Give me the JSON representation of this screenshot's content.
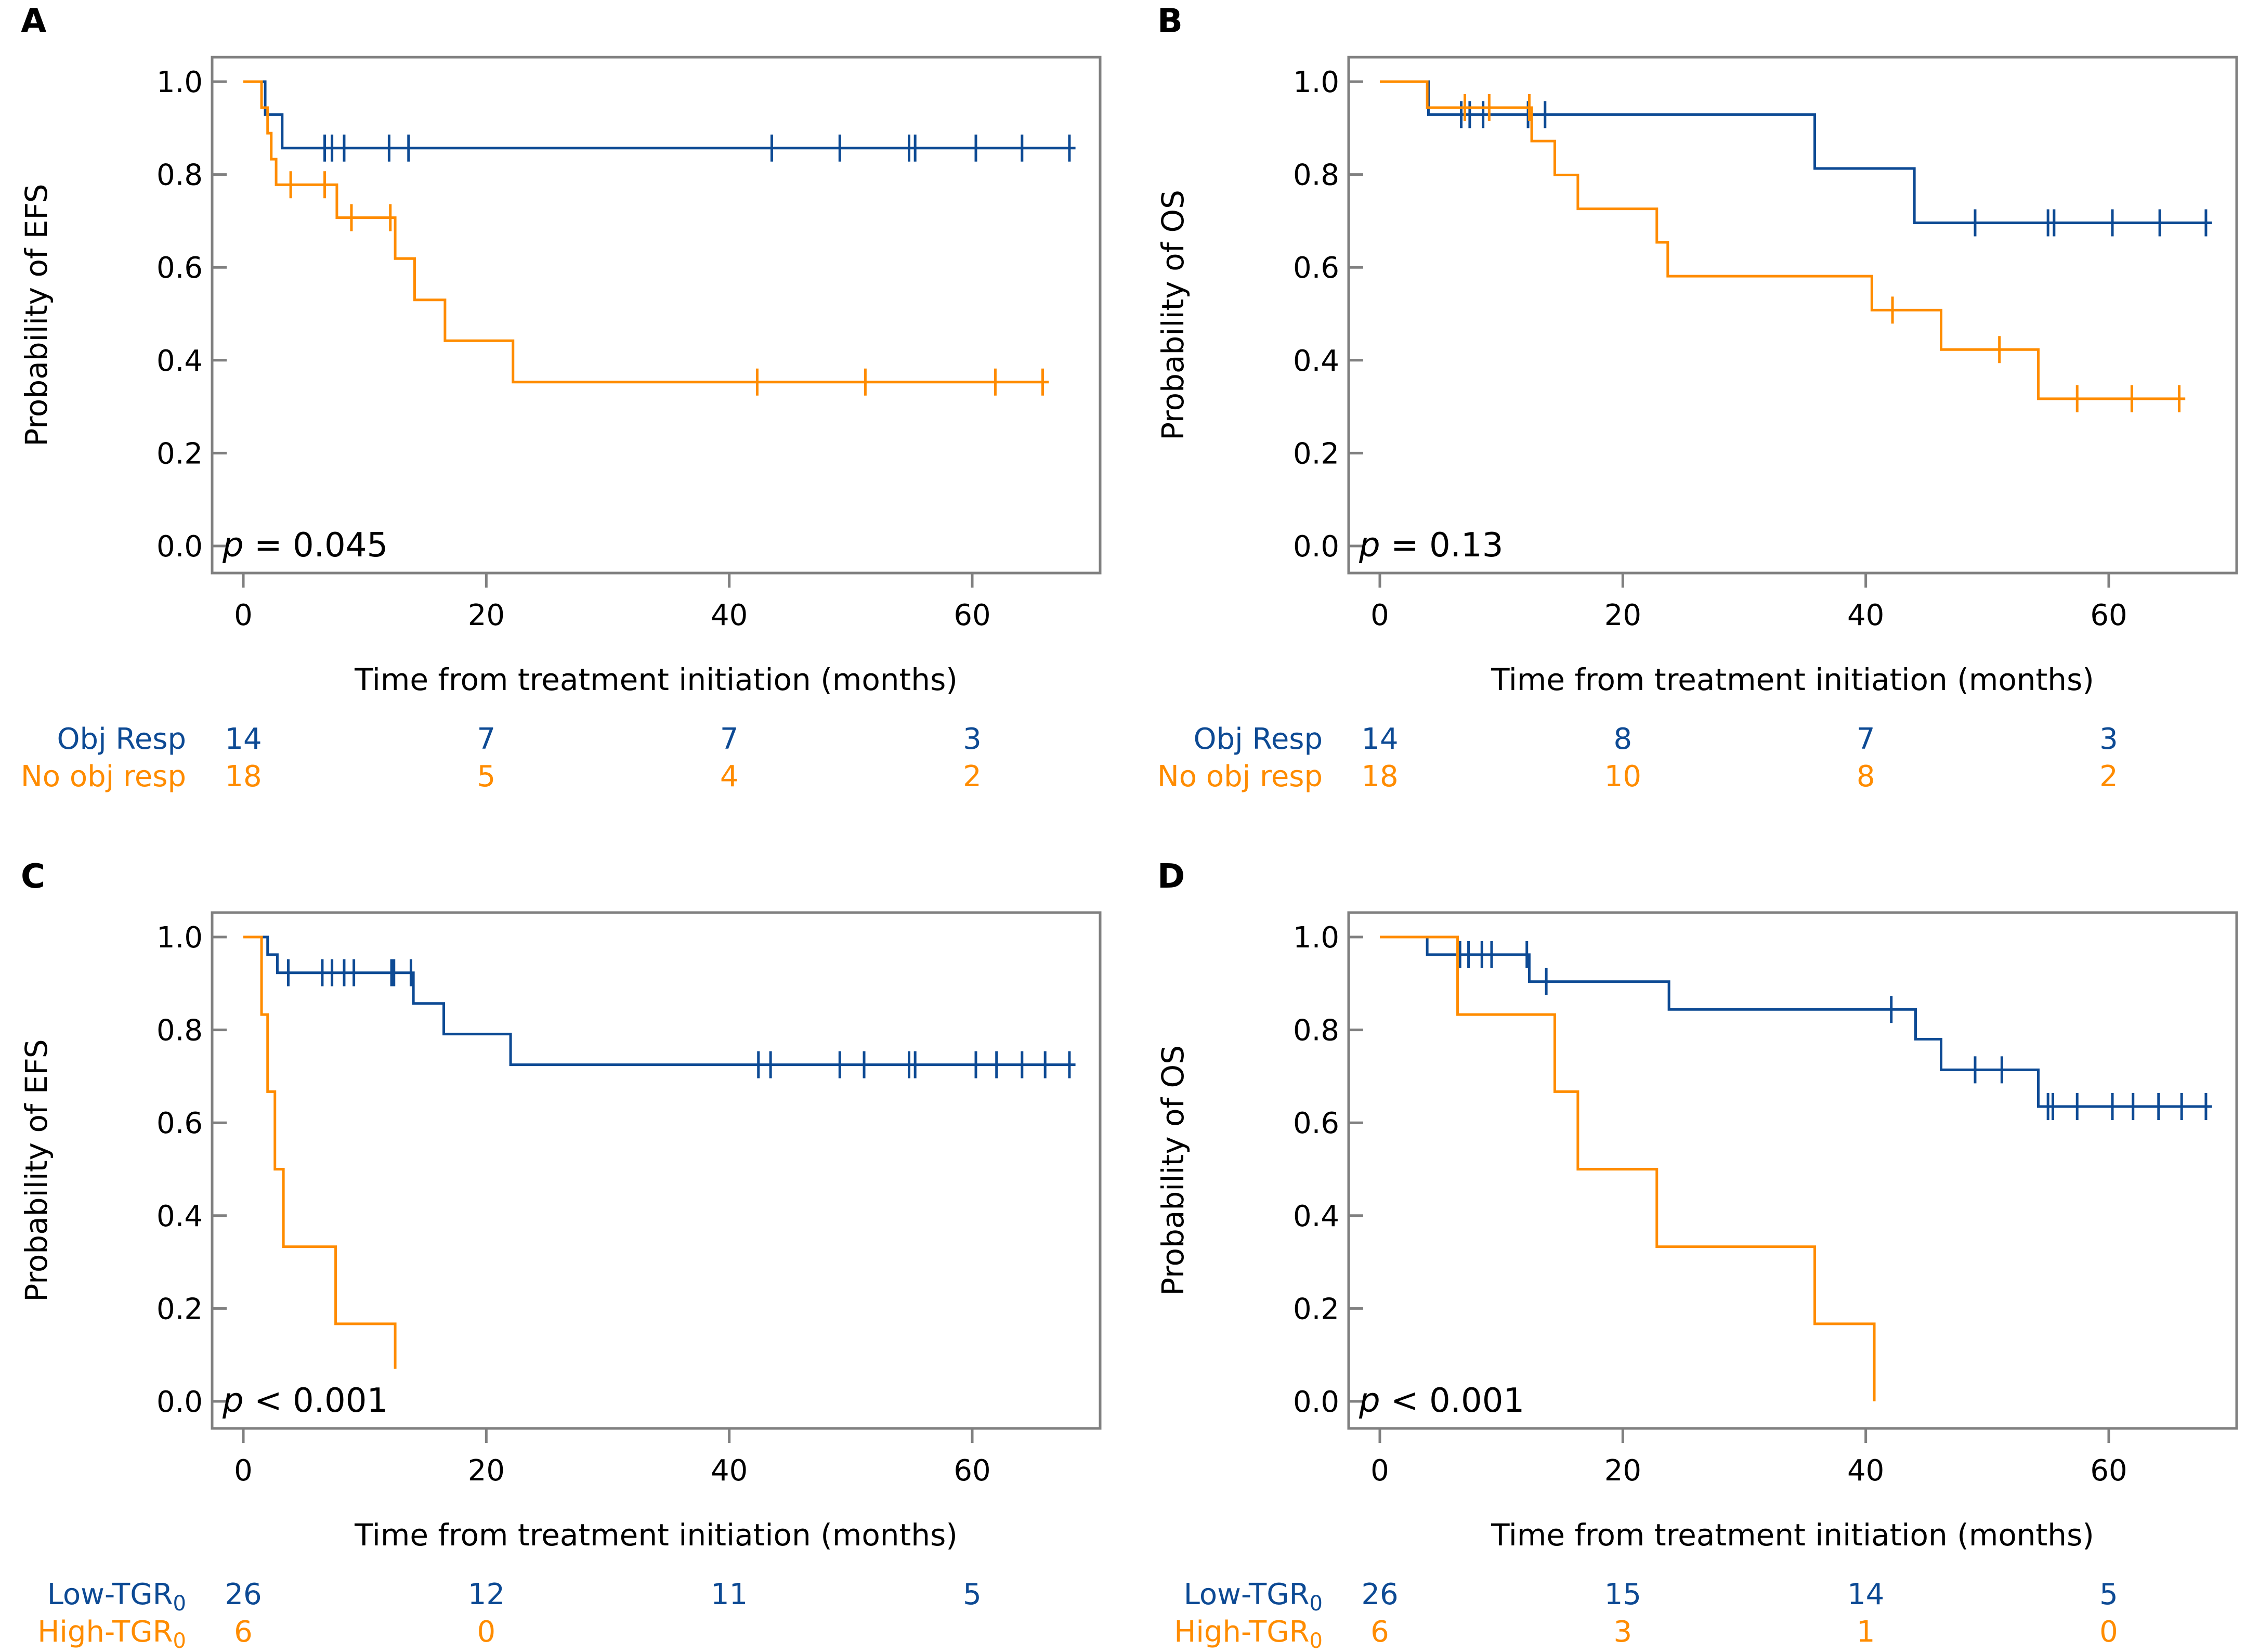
{
  "colors": {
    "blue": "#0d4a94",
    "orange": "#ff8c00",
    "axis": "#808080",
    "text": "#000000"
  },
  "chart_data": [
    {
      "type": "line",
      "panel_label": "A",
      "ylabel": "Probability of EFS",
      "xlabel": "Time from treatment initiation (months)",
      "xlim": [
        -1.5,
        70
      ],
      "ylim": [
        -0.05,
        1.05
      ],
      "xticks": [
        0,
        20,
        40,
        60
      ],
      "yticks": [
        "0.0",
        "0.2",
        "0.4",
        "0.6",
        "0.8",
        "1.0"
      ],
      "pvalue": {
        "p": "p",
        "rest": " = 0.045"
      },
      "series": [
        {
          "name": "Obj Resp",
          "color": "blue",
          "steps": [
            [
              0,
              1.0
            ],
            [
              1.8,
              0.929
            ],
            [
              3.2,
              0.857
            ]
          ],
          "end": 68.5,
          "censors": [
            6.7,
            7.3,
            8.3,
            12.0,
            13.6,
            43.5,
            49.1,
            54.8,
            55.3,
            60.3,
            64.1,
            68.0
          ]
        },
        {
          "name": "No obj resp",
          "color": "orange",
          "steps": [
            [
              0,
              1.0
            ],
            [
              1.5,
              0.944
            ],
            [
              2.0,
              0.889
            ],
            [
              2.3,
              0.833
            ],
            [
              2.7,
              0.778
            ],
            [
              7.7,
              0.707
            ],
            [
              12.5,
              0.619
            ],
            [
              14.1,
              0.53
            ],
            [
              16.6,
              0.442
            ],
            [
              22.2,
              0.353
            ]
          ],
          "end": 66.3,
          "censors": [
            3.9,
            6.7,
            8.9,
            12.1,
            42.3,
            51.2,
            61.9,
            65.8
          ]
        }
      ],
      "risk_table": {
        "times": [
          0,
          20,
          40,
          60
        ],
        "rows": [
          {
            "label": "Obj Resp",
            "sub": "",
            "color": "blue",
            "values": [
              "14",
              "7",
              "7",
              "3"
            ]
          },
          {
            "label": "No obj resp",
            "sub": "",
            "color": "orange",
            "values": [
              "18",
              "5",
              "4",
              "2"
            ]
          }
        ]
      }
    },
    {
      "type": "line",
      "panel_label": "B",
      "ylabel": "Probability of OS",
      "xlabel": "Time from treatment initiation (months)",
      "xlim": [
        -1.5,
        70
      ],
      "ylim": [
        -0.05,
        1.05
      ],
      "xticks": [
        0,
        20,
        40,
        60
      ],
      "yticks": [
        "0.0",
        "0.2",
        "0.4",
        "0.6",
        "0.8",
        "1.0"
      ],
      "pvalue": {
        "p": "p",
        "rest": " = 0.13"
      },
      "series": [
        {
          "name": "Obj Resp",
          "color": "blue",
          "steps": [
            [
              0,
              1.0
            ],
            [
              4.0,
              0.929
            ],
            [
              35.8,
              0.813
            ],
            [
              44.0,
              0.696
            ]
          ],
          "end": 68.5,
          "censors": [
            6.7,
            7.4,
            8.5,
            12.2,
            13.6,
            49.0,
            55.0,
            55.5,
            60.3,
            64.2,
            68.0
          ]
        },
        {
          "name": "No obj resp",
          "color": "orange",
          "steps": [
            [
              0,
              1.0
            ],
            [
              3.9,
              0.944
            ],
            [
              12.5,
              0.872
            ],
            [
              14.4,
              0.799
            ],
            [
              16.3,
              0.726
            ],
            [
              22.8,
              0.654
            ],
            [
              23.7,
              0.581
            ],
            [
              40.5,
              0.508
            ],
            [
              46.2,
              0.423
            ],
            [
              54.2,
              0.317
            ]
          ],
          "end": 66.3,
          "censors": [
            7.0,
            9.0,
            12.3,
            42.2,
            51.0,
            57.4,
            61.9,
            65.8
          ]
        }
      ],
      "risk_table": {
        "times": [
          0,
          20,
          40,
          60
        ],
        "rows": [
          {
            "label": "Obj Resp",
            "sub": "",
            "color": "blue",
            "values": [
              "14",
              "8",
              "7",
              "3"
            ]
          },
          {
            "label": "No obj resp",
            "sub": "",
            "color": "orange",
            "values": [
              "18",
              "10",
              "8",
              "2"
            ]
          }
        ]
      }
    },
    {
      "type": "line",
      "panel_label": "C",
      "ylabel": "Probability of EFS",
      "xlabel": "Time from treatment initiation (months)",
      "xlim": [
        -1.5,
        70
      ],
      "ylim": [
        -0.05,
        1.05
      ],
      "xticks": [
        0,
        20,
        40,
        60
      ],
      "yticks": [
        "0.0",
        "0.2",
        "0.4",
        "0.6",
        "0.8",
        "1.0"
      ],
      "pvalue": {
        "p": "p",
        "rest": " < 0.001"
      },
      "series": [
        {
          "name": "Low-TGR0",
          "color": "blue",
          "steps": [
            [
              0,
              1.0
            ],
            [
              2.0,
              0.962
            ],
            [
              2.8,
              0.923
            ],
            [
              14.0,
              0.857
            ],
            [
              16.5,
              0.791
            ],
            [
              22.0,
              0.725
            ]
          ],
          "end": 68.5,
          "censors": [
            3.7,
            6.5,
            7.3,
            8.3,
            9.1,
            12.2,
            12.4,
            13.8,
            42.4,
            43.4,
            49.1,
            51.1,
            54.8,
            55.3,
            60.3,
            62.0,
            64.1,
            66.0,
            68.0
          ]
        },
        {
          "name": "High-TGR0",
          "color": "orange",
          "steps": [
            [
              0,
              1.0
            ],
            [
              1.5,
              0.833
            ],
            [
              2.0,
              0.667
            ],
            [
              2.6,
              0.5
            ],
            [
              3.3,
              0.333
            ],
            [
              7.6,
              0.167
            ],
            [
              12.5,
              0.07
            ]
          ],
          "end": 12.5,
          "censors": []
        }
      ],
      "risk_table": {
        "times": [
          0,
          20,
          40,
          60
        ],
        "rows": [
          {
            "label": "Low-TGR",
            "sub": "0",
            "color": "blue",
            "values": [
              "26",
              "12",
              "11",
              "5"
            ]
          },
          {
            "label": "High-TGR",
            "sub": "0",
            "color": "orange",
            "values": [
              "6",
              "0",
              "",
              ""
            ]
          }
        ]
      }
    },
    {
      "type": "line",
      "panel_label": "D",
      "ylabel": "Probability of OS",
      "xlabel": "Time from treatment initiation (months)",
      "xlim": [
        -1.5,
        70
      ],
      "ylim": [
        -0.05,
        1.05
      ],
      "xticks": [
        0,
        20,
        40,
        60
      ],
      "yticks": [
        "0.0",
        "0.2",
        "0.4",
        "0.6",
        "0.8",
        "1.0"
      ],
      "pvalue": {
        "p": "p",
        "rest": " < 0.001"
      },
      "series": [
        {
          "name": "Low-TGR0",
          "color": "blue",
          "steps": [
            [
              0,
              1.0
            ],
            [
              3.9,
              0.962
            ],
            [
              12.3,
              0.904
            ],
            [
              23.8,
              0.844
            ],
            [
              44.1,
              0.78
            ],
            [
              46.2,
              0.714
            ],
            [
              54.2,
              0.635
            ]
          ],
          "end": 68.5,
          "censors": [
            6.6,
            7.3,
            8.4,
            9.2,
            12.1,
            13.7,
            42.1,
            49.0,
            51.2,
            55.0,
            55.4,
            57.4,
            60.3,
            62.0,
            64.1,
            66.0,
            68.0
          ]
        },
        {
          "name": "High-TGR0",
          "color": "orange",
          "steps": [
            [
              0,
              1.0
            ],
            [
              6.4,
              0.833
            ],
            [
              14.4,
              0.667
            ],
            [
              16.3,
              0.5
            ],
            [
              22.8,
              0.333
            ],
            [
              35.8,
              0.167
            ],
            [
              40.7,
              0.0
            ]
          ],
          "end": 40.7,
          "censors": []
        }
      ],
      "risk_table": {
        "times": [
          0,
          20,
          40,
          60
        ],
        "rows": [
          {
            "label": "Low-TGR",
            "sub": "0",
            "color": "blue",
            "values": [
              "26",
              "15",
              "14",
              "5"
            ]
          },
          {
            "label": "High-TGR",
            "sub": "0",
            "color": "orange",
            "values": [
              "6",
              "3",
              "1",
              "0"
            ]
          }
        ]
      }
    }
  ]
}
